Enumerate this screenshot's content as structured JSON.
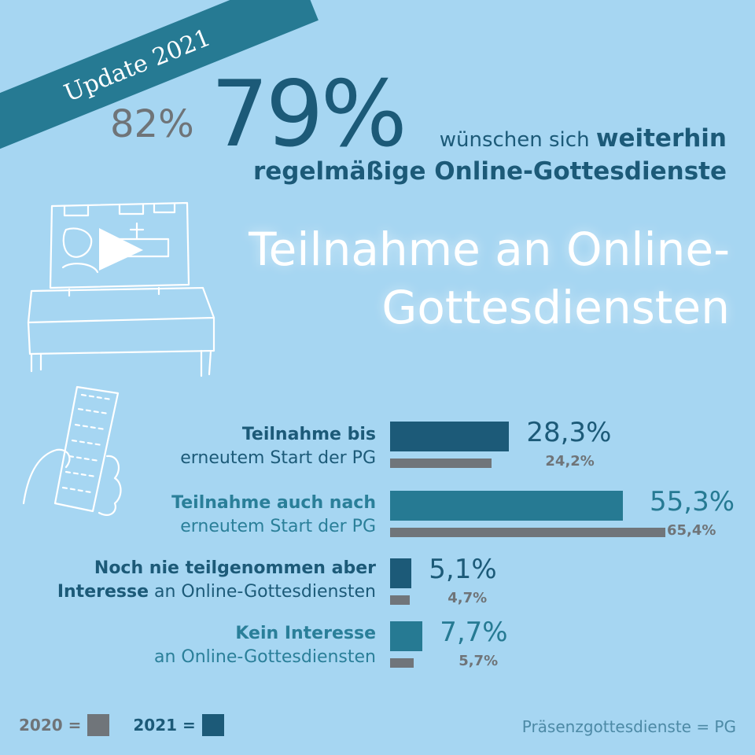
{
  "ribbon": {
    "text": "Update 2021"
  },
  "header": {
    "pct_2020": "82%",
    "pct_2021": "79%",
    "line1_normal": "wünschen sich ",
    "line1_bold": "weiterhin",
    "line2": "regelmäßige Online-Gottesdienste"
  },
  "headline": {
    "line1": "Teilnahme an Online-",
    "line2": "Gottesdiensten"
  },
  "chart_data": {
    "type": "bar",
    "orientation": "horizontal",
    "title": "Teilnahme an Online-Gottesdiensten",
    "categories": [
      "Teilnahme bis erneutem Start der PG",
      "Teilnahme auch nach erneutem Start der PG",
      "Noch nie teilgenommen aber Interesse an Online-Gottesdiensten",
      "Kein Interesse an Online-Gottesdiensten"
    ],
    "series": [
      {
        "name": "2021",
        "values": [
          28.3,
          55.3,
          5.1,
          7.7
        ],
        "labels": [
          "28,3%",
          "55,3%",
          "5,1%",
          "7,7%"
        ]
      },
      {
        "name": "2020",
        "values": [
          24.2,
          65.4,
          4.7,
          5.7
        ],
        "labels": [
          "24,2%",
          "65,4%",
          "4,7%",
          "5,7%"
        ]
      }
    ],
    "category_labels": [
      {
        "bold": "Teilnahme bis",
        "normal": "erneutem Start der PG",
        "color": "#1c5a78"
      },
      {
        "bold": "Teilnahme auch nach",
        "normal": "erneutem Start der PG",
        "color": "#2a7f99"
      },
      {
        "bold": "Noch nie teilgenommen aber",
        "bold2": "Interesse",
        "normal": " an Online-Gottesdiensten",
        "color": "#1c5a78"
      },
      {
        "bold": "Kein Interesse",
        "normal": "an Online-Gottesdiensten",
        "color": "#2a7f99"
      }
    ],
    "bar_colors_2021": [
      "#1c5a78",
      "#267a93",
      "#1c5a78",
      "#267a93"
    ],
    "color_2020": "#70757a",
    "legend_placement": "bottom-left",
    "grid": false
  },
  "legend": {
    "label_2020": "2020 =",
    "label_2021": "2021 ="
  },
  "footnote": "Präsenzgottesdienste = PG",
  "colors": {
    "background": "#a6d6f2",
    "dark": "#1c5a78",
    "teal": "#267a93",
    "gray": "#70757a",
    "ribbon": "#267a93"
  }
}
